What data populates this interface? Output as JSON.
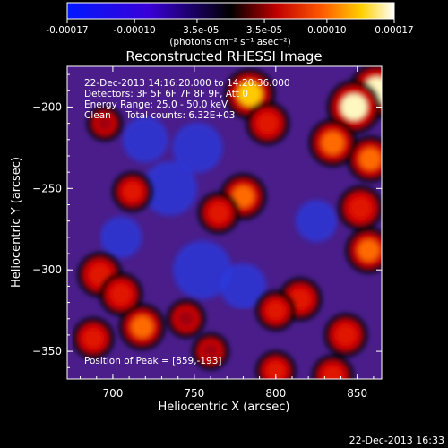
{
  "chart_data": {
    "type": "heatmap",
    "title": "Reconstructed RHESSI Image",
    "xlabel": "Heliocentric X (arcsec)",
    "ylabel": "Heliocentric Y (arcsec)",
    "xlim": [
      672,
      865
    ],
    "ylim": [
      -367,
      -175
    ],
    "x_ticks": [
      700,
      750,
      800,
      850
    ],
    "y_ticks": [
      -200,
      -250,
      -300,
      -350
    ],
    "colorbar": {
      "ticks": [
        "-0.00017",
        "-0.00010",
        "−3.5e-05",
        "3.5e-05",
        "0.00010",
        "0.00017"
      ],
      "unit_label": "(photons cm⁻² s⁻¹ asec⁻²)",
      "range": [
        -0.00017,
        0.00017
      ],
      "colormap": "blue-black-red-yellow-white"
    },
    "annotations": [
      "22-Dec-2013 14:16:20.000 to 14:20:36.000",
      "Detectors: 3F 5F 6F 7F 8F 9F, Att 0",
      "Energy Range: 25.0 - 50.0 keV",
      "Clean     Total counts: 6.32E+03"
    ],
    "peak_label": "Position of Peak = [859,-193]",
    "hot_spots": [
      {
        "x": 862,
        "y": -190,
        "value": 0.00017
      },
      {
        "x": 848,
        "y": -200,
        "value": 0.00016
      },
      {
        "x": 835,
        "y": -222,
        "value": 0.00012
      },
      {
        "x": 858,
        "y": -232,
        "value": 0.00011
      },
      {
        "x": 852,
        "y": -262,
        "value": 0.0001
      },
      {
        "x": 857,
        "y": -288,
        "value": 0.00011
      },
      {
        "x": 843,
        "y": -340,
        "value": 9e-05
      },
      {
        "x": 784,
        "y": -192,
        "value": 0.00014
      },
      {
        "x": 795,
        "y": -210,
        "value": 9e-05
      },
      {
        "x": 780,
        "y": -255,
        "value": 0.00011
      },
      {
        "x": 765,
        "y": -265,
        "value": 8e-05
      },
      {
        "x": 712,
        "y": -252,
        "value": 7e-05
      },
      {
        "x": 692,
        "y": -303,
        "value": 0.0001
      },
      {
        "x": 705,
        "y": -315,
        "value": 9e-05
      },
      {
        "x": 718,
        "y": -335,
        "value": 0.00011
      },
      {
        "x": 688,
        "y": -342,
        "value": 8e-05
      },
      {
        "x": 745,
        "y": -330,
        "value": 6e-05
      },
      {
        "x": 815,
        "y": -318,
        "value": 9e-05
      },
      {
        "x": 800,
        "y": -325,
        "value": 7e-05
      },
      {
        "x": 800,
        "y": -362,
        "value": 7e-05
      },
      {
        "x": 835,
        "y": -365,
        "value": 8e-05
      },
      {
        "x": 695,
        "y": -210,
        "value": 4e-05
      },
      {
        "x": 760,
        "y": -350,
        "value": 5e-05
      }
    ],
    "cold_spots": [
      {
        "x": 735,
        "y": -250,
        "value": -7e-05
      },
      {
        "x": 755,
        "y": -300,
        "value": -8e-05
      },
      {
        "x": 720,
        "y": -220,
        "value": -5e-05
      },
      {
        "x": 752,
        "y": -225,
        "value": -6e-05
      },
      {
        "x": 780,
        "y": -310,
        "value": -5e-05
      },
      {
        "x": 705,
        "y": -280,
        "value": -4e-05
      },
      {
        "x": 825,
        "y": -270,
        "value": -4e-05
      }
    ]
  },
  "footer": {
    "timestamp": "22-Dec-2013 16:33"
  }
}
